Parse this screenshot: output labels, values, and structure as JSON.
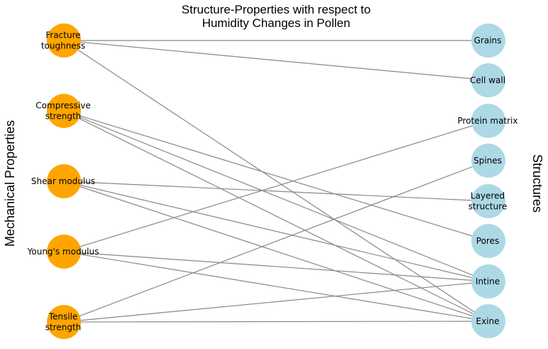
{
  "title": {
    "line1": "Structure-Properties with respect to",
    "line2": "Humidity Changes in Pollen"
  },
  "left_axis_label": "Mechanical Properties",
  "right_axis_label": "Structures",
  "colors": {
    "property_node": "#FFA500",
    "structure_node": "#ADD8E6",
    "edge": "#888888"
  },
  "properties": [
    {
      "id": "fracture",
      "label_lines": [
        "Fracture",
        "toughness"
      ]
    },
    {
      "id": "compressive",
      "label_lines": [
        "Compressive",
        "strength"
      ]
    },
    {
      "id": "shear",
      "label_lines": [
        "Shear modulus"
      ]
    },
    {
      "id": "youngs",
      "label_lines": [
        "Young's modulus"
      ]
    },
    {
      "id": "tensile",
      "label_lines": [
        "Tensile",
        "strength"
      ]
    }
  ],
  "structures": [
    {
      "id": "grains",
      "label_lines": [
        "Grains"
      ]
    },
    {
      "id": "cellwall",
      "label_lines": [
        "Cell wall"
      ]
    },
    {
      "id": "protein",
      "label_lines": [
        "Protein matrix"
      ]
    },
    {
      "id": "spines",
      "label_lines": [
        "Spines"
      ]
    },
    {
      "id": "layered",
      "label_lines": [
        "Layered",
        "structure"
      ]
    },
    {
      "id": "pores",
      "label_lines": [
        "Pores"
      ]
    },
    {
      "id": "intine",
      "label_lines": [
        "Intine"
      ]
    },
    {
      "id": "exine",
      "label_lines": [
        "Exine"
      ]
    }
  ],
  "edges": [
    [
      "fracture",
      "grains"
    ],
    [
      "fracture",
      "cellwall"
    ],
    [
      "fracture",
      "exine"
    ],
    [
      "compressive",
      "pores"
    ],
    [
      "compressive",
      "intine"
    ],
    [
      "compressive",
      "exine"
    ],
    [
      "shear",
      "layered"
    ],
    [
      "shear",
      "intine"
    ],
    [
      "shear",
      "exine"
    ],
    [
      "youngs",
      "protein"
    ],
    [
      "youngs",
      "intine"
    ],
    [
      "youngs",
      "exine"
    ],
    [
      "tensile",
      "spines"
    ],
    [
      "tensile",
      "intine"
    ],
    [
      "tensile",
      "exine"
    ]
  ]
}
